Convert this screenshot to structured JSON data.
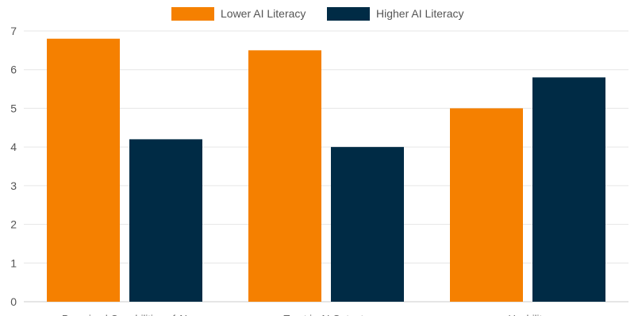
{
  "chart_data": {
    "type": "bar",
    "categories": [
      "Perceived Capabilities of AI",
      "Trust in AI Outputs",
      "Usability"
    ],
    "series": [
      {
        "name": "Lower AI Literacy",
        "values": [
          6.8,
          6.5,
          5.0
        ],
        "color": "#f58000"
      },
      {
        "name": "Higher AI Literacy",
        "values": [
          4.2,
          4.0,
          5.8
        ],
        "color": "#002b45"
      }
    ],
    "ylim": [
      0,
      7
    ],
    "yticks": [
      "0",
      "1",
      "2",
      "3",
      "4",
      "5",
      "6",
      "7"
    ],
    "grid": true,
    "legend_position": "top-center"
  }
}
